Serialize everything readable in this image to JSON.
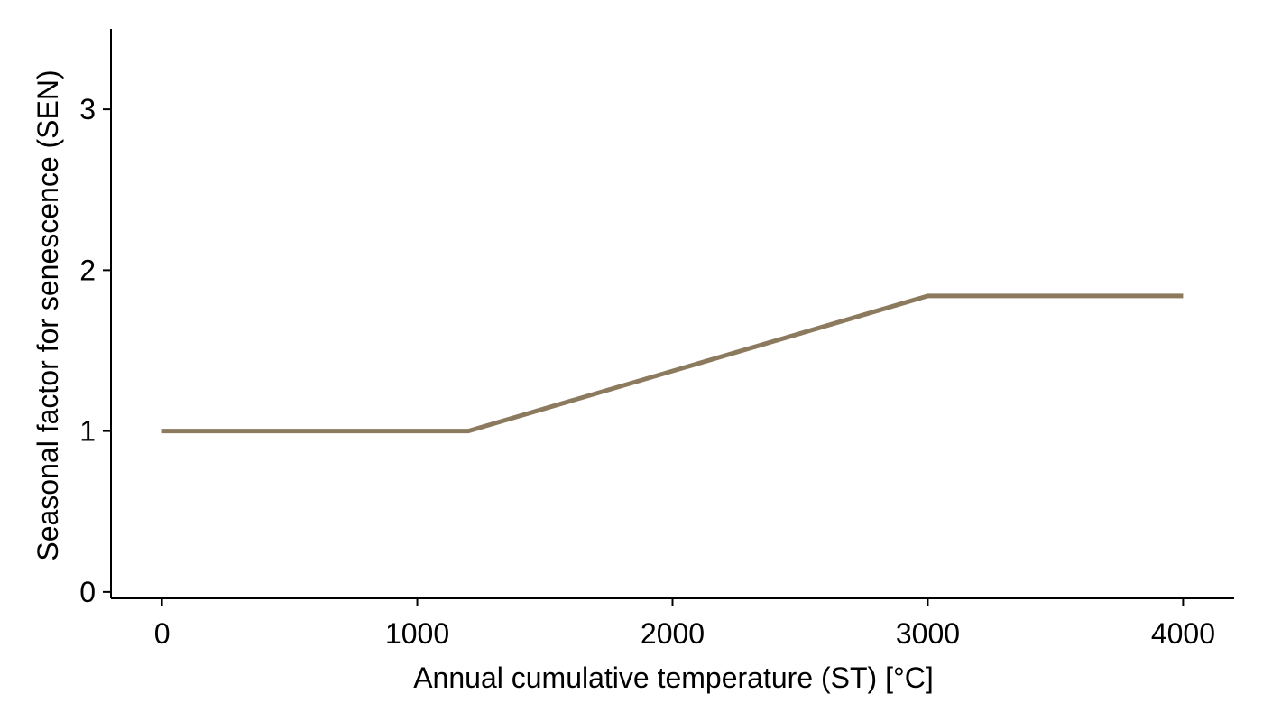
{
  "chart_data": {
    "type": "line",
    "title": "",
    "xlabel": "Annual cumulative temperature (ST) [°C]",
    "ylabel": "Seasonal factor for senescence (SEN)",
    "xlim": [
      -200,
      4200
    ],
    "ylim": [
      -0.04,
      3.5
    ],
    "x_ticks": [
      0,
      1000,
      2000,
      3000,
      4000
    ],
    "y_ticks": [
      0,
      1,
      2,
      3
    ],
    "x_tick_labels": [
      "0",
      "1000",
      "2000",
      "3000",
      "4000"
    ],
    "y_tick_labels": [
      "0",
      "1",
      "2",
      "3"
    ],
    "grid": false,
    "series": [
      {
        "color": "#8b7a5e",
        "x": [
          0,
          1200,
          3000,
          4000
        ],
        "y": [
          1.0,
          1.0,
          1.84,
          1.84
        ]
      }
    ]
  }
}
